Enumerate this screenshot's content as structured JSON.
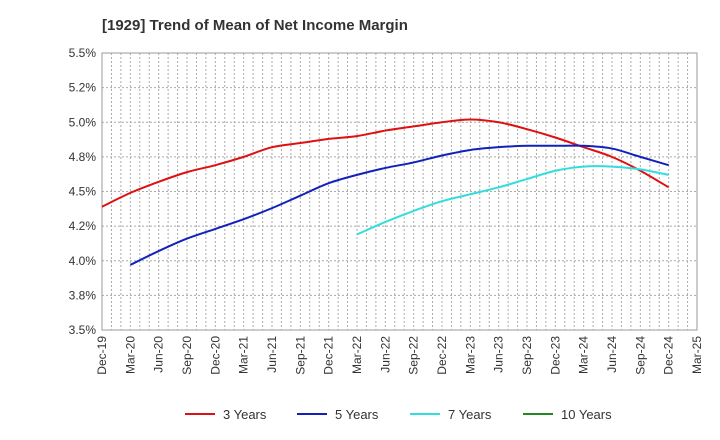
{
  "chart_data": {
    "type": "line",
    "title": "[1929]  Trend of Mean of Net Income Margin",
    "xlabel": "",
    "ylabel": "",
    "x_tick_labels": [
      "Dec-19",
      "Mar-20",
      "Jun-20",
      "Sep-20",
      "Dec-20",
      "Mar-21",
      "Jun-21",
      "Sep-21",
      "Dec-21",
      "Mar-22",
      "Jun-22",
      "Sep-22",
      "Dec-22",
      "Mar-23",
      "Jun-23",
      "Sep-23",
      "Dec-23",
      "Mar-24",
      "Jun-24",
      "Sep-24",
      "Dec-24",
      "Mar-25"
    ],
    "y_tick_labels": [
      "3.5%",
      "3.8%",
      "4.0%",
      "4.2%",
      "4.5%",
      "4.8%",
      "5.0%",
      "5.2%",
      "5.5%"
    ],
    "ylim": [
      3.5,
      5.5
    ],
    "grid": true,
    "legend_position": "bottom",
    "series": [
      {
        "name": "3 Years",
        "color": "#dd1111",
        "values": [
          4.39,
          4.49,
          4.57,
          4.64,
          4.69,
          4.75,
          4.82,
          4.85,
          4.88,
          4.9,
          4.94,
          4.97,
          5.0,
          5.02,
          5.0,
          4.95,
          4.89,
          4.82,
          4.75,
          4.65,
          4.53,
          null
        ]
      },
      {
        "name": "5 Years",
        "color": "#1122bb",
        "values": [
          null,
          3.97,
          4.07,
          4.16,
          4.23,
          4.3,
          4.38,
          4.47,
          4.56,
          4.62,
          4.67,
          4.71,
          4.76,
          4.8,
          4.82,
          4.83,
          4.83,
          4.83,
          4.81,
          4.75,
          4.69,
          null
        ]
      },
      {
        "name": "7 Years",
        "color": "#33dddd",
        "values": [
          null,
          null,
          null,
          null,
          null,
          null,
          null,
          null,
          null,
          4.19,
          4.28,
          4.36,
          4.43,
          4.48,
          4.53,
          4.59,
          4.65,
          4.68,
          4.68,
          4.66,
          4.62,
          null
        ]
      },
      {
        "name": "10 Years",
        "color": "#228822",
        "values": [
          null,
          null,
          null,
          null,
          null,
          null,
          null,
          null,
          null,
          null,
          null,
          null,
          null,
          null,
          null,
          null,
          null,
          null,
          null,
          null,
          null,
          null
        ]
      }
    ]
  }
}
